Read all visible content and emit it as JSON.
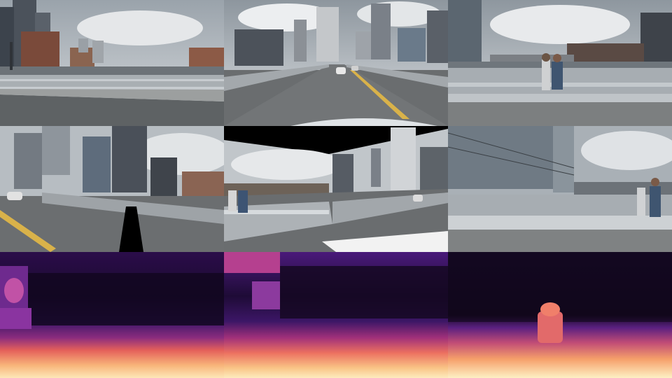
{
  "panels": [
    {
      "row": "camera",
      "view": "left-front",
      "kind": "photo"
    },
    {
      "row": "camera",
      "view": "front",
      "kind": "photo"
    },
    {
      "row": "camera",
      "view": "right-front",
      "kind": "photo"
    },
    {
      "row": "warped",
      "view": "left-front",
      "kind": "warped-photo"
    },
    {
      "row": "warped",
      "view": "front",
      "kind": "warped-photo"
    },
    {
      "row": "warped",
      "view": "right-front",
      "kind": "warped-photo"
    },
    {
      "row": "depth",
      "view": "left-front",
      "kind": "depth-map",
      "colormap": "magma"
    },
    {
      "row": "depth",
      "view": "front",
      "kind": "depth-map",
      "colormap": "magma"
    },
    {
      "row": "depth",
      "view": "right-front",
      "kind": "depth-map",
      "colormap": "magma"
    }
  ],
  "colors": {
    "sky": "#c9cdd1",
    "cloud": "#e6e8ea",
    "building_dark": "#3a3f47",
    "building_mid": "#6a7079",
    "road": "#5b5e60",
    "lane_yellow": "#d9b24a",
    "railing": "#b9bec2",
    "magma_far": "#1a0a2e",
    "magma_mid": "#7b2a8c",
    "magma_near": "#f5a05a",
    "magma_closest": "#fbe9b0"
  }
}
